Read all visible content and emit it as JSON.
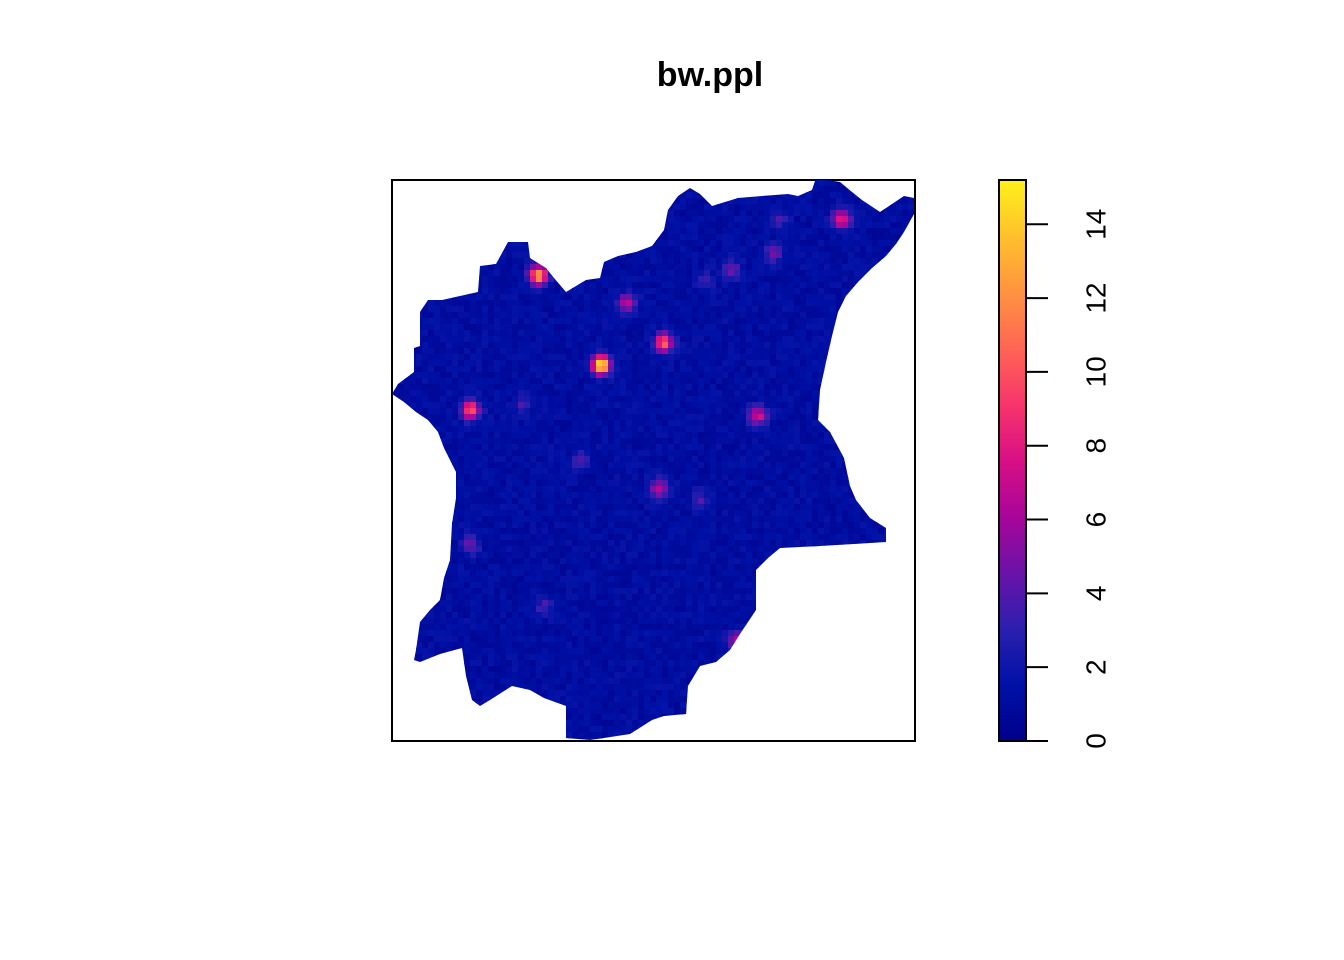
{
  "chart_data": {
    "type": "heatmap",
    "title": "bw.ppl",
    "xlabel": "",
    "ylabel": "",
    "axes_shown": false,
    "colorbar": {
      "range": [
        0,
        15.2
      ],
      "ticks": [
        0,
        2,
        4,
        6,
        8,
        10,
        12,
        14
      ],
      "tick_labels": [
        "0",
        "2",
        "4",
        "6",
        "8",
        "10",
        "12",
        "14"
      ],
      "palette": [
        "#00008B",
        "#0011A6",
        "#2B1FAE",
        "#6A13A8",
        "#A8059A",
        "#D90F85",
        "#F7356C",
        "#FF6553",
        "#FF9340",
        "#FFC12C",
        "#FFF01B"
      ],
      "placement": "right"
    },
    "base_value": 0.6,
    "hotspots": [
      {
        "x": 0.4,
        "y": 0.67,
        "value": 15.0
      },
      {
        "x": 0.28,
        "y": 0.83,
        "value": 12.5
      },
      {
        "x": 0.52,
        "y": 0.71,
        "value": 10.0
      },
      {
        "x": 0.15,
        "y": 0.59,
        "value": 10.0
      },
      {
        "x": 0.7,
        "y": 0.58,
        "value": 7.0
      },
      {
        "x": 0.86,
        "y": 0.93,
        "value": 8.0
      },
      {
        "x": 0.45,
        "y": 0.78,
        "value": 6.0
      },
      {
        "x": 0.51,
        "y": 0.45,
        "value": 6.0
      },
      {
        "x": 0.66,
        "y": 0.18,
        "value": 6.0
      },
      {
        "x": 0.15,
        "y": 0.35,
        "value": 4.0
      },
      {
        "x": 0.73,
        "y": 0.87,
        "value": 4.0
      },
      {
        "x": 0.65,
        "y": 0.84,
        "value": 4.0
      },
      {
        "x": 0.29,
        "y": 0.88,
        "value": 3.5
      },
      {
        "x": 0.36,
        "y": 0.5,
        "value": 3.5
      },
      {
        "x": 0.59,
        "y": 0.43,
        "value": 3.0
      },
      {
        "x": 0.25,
        "y": 0.6,
        "value": 3.0
      },
      {
        "x": 0.29,
        "y": 0.24,
        "value": 3.0
      },
      {
        "x": 0.74,
        "y": 0.93,
        "value": 2.8
      },
      {
        "x": 0.6,
        "y": 0.82,
        "value": 2.8
      }
    ]
  }
}
